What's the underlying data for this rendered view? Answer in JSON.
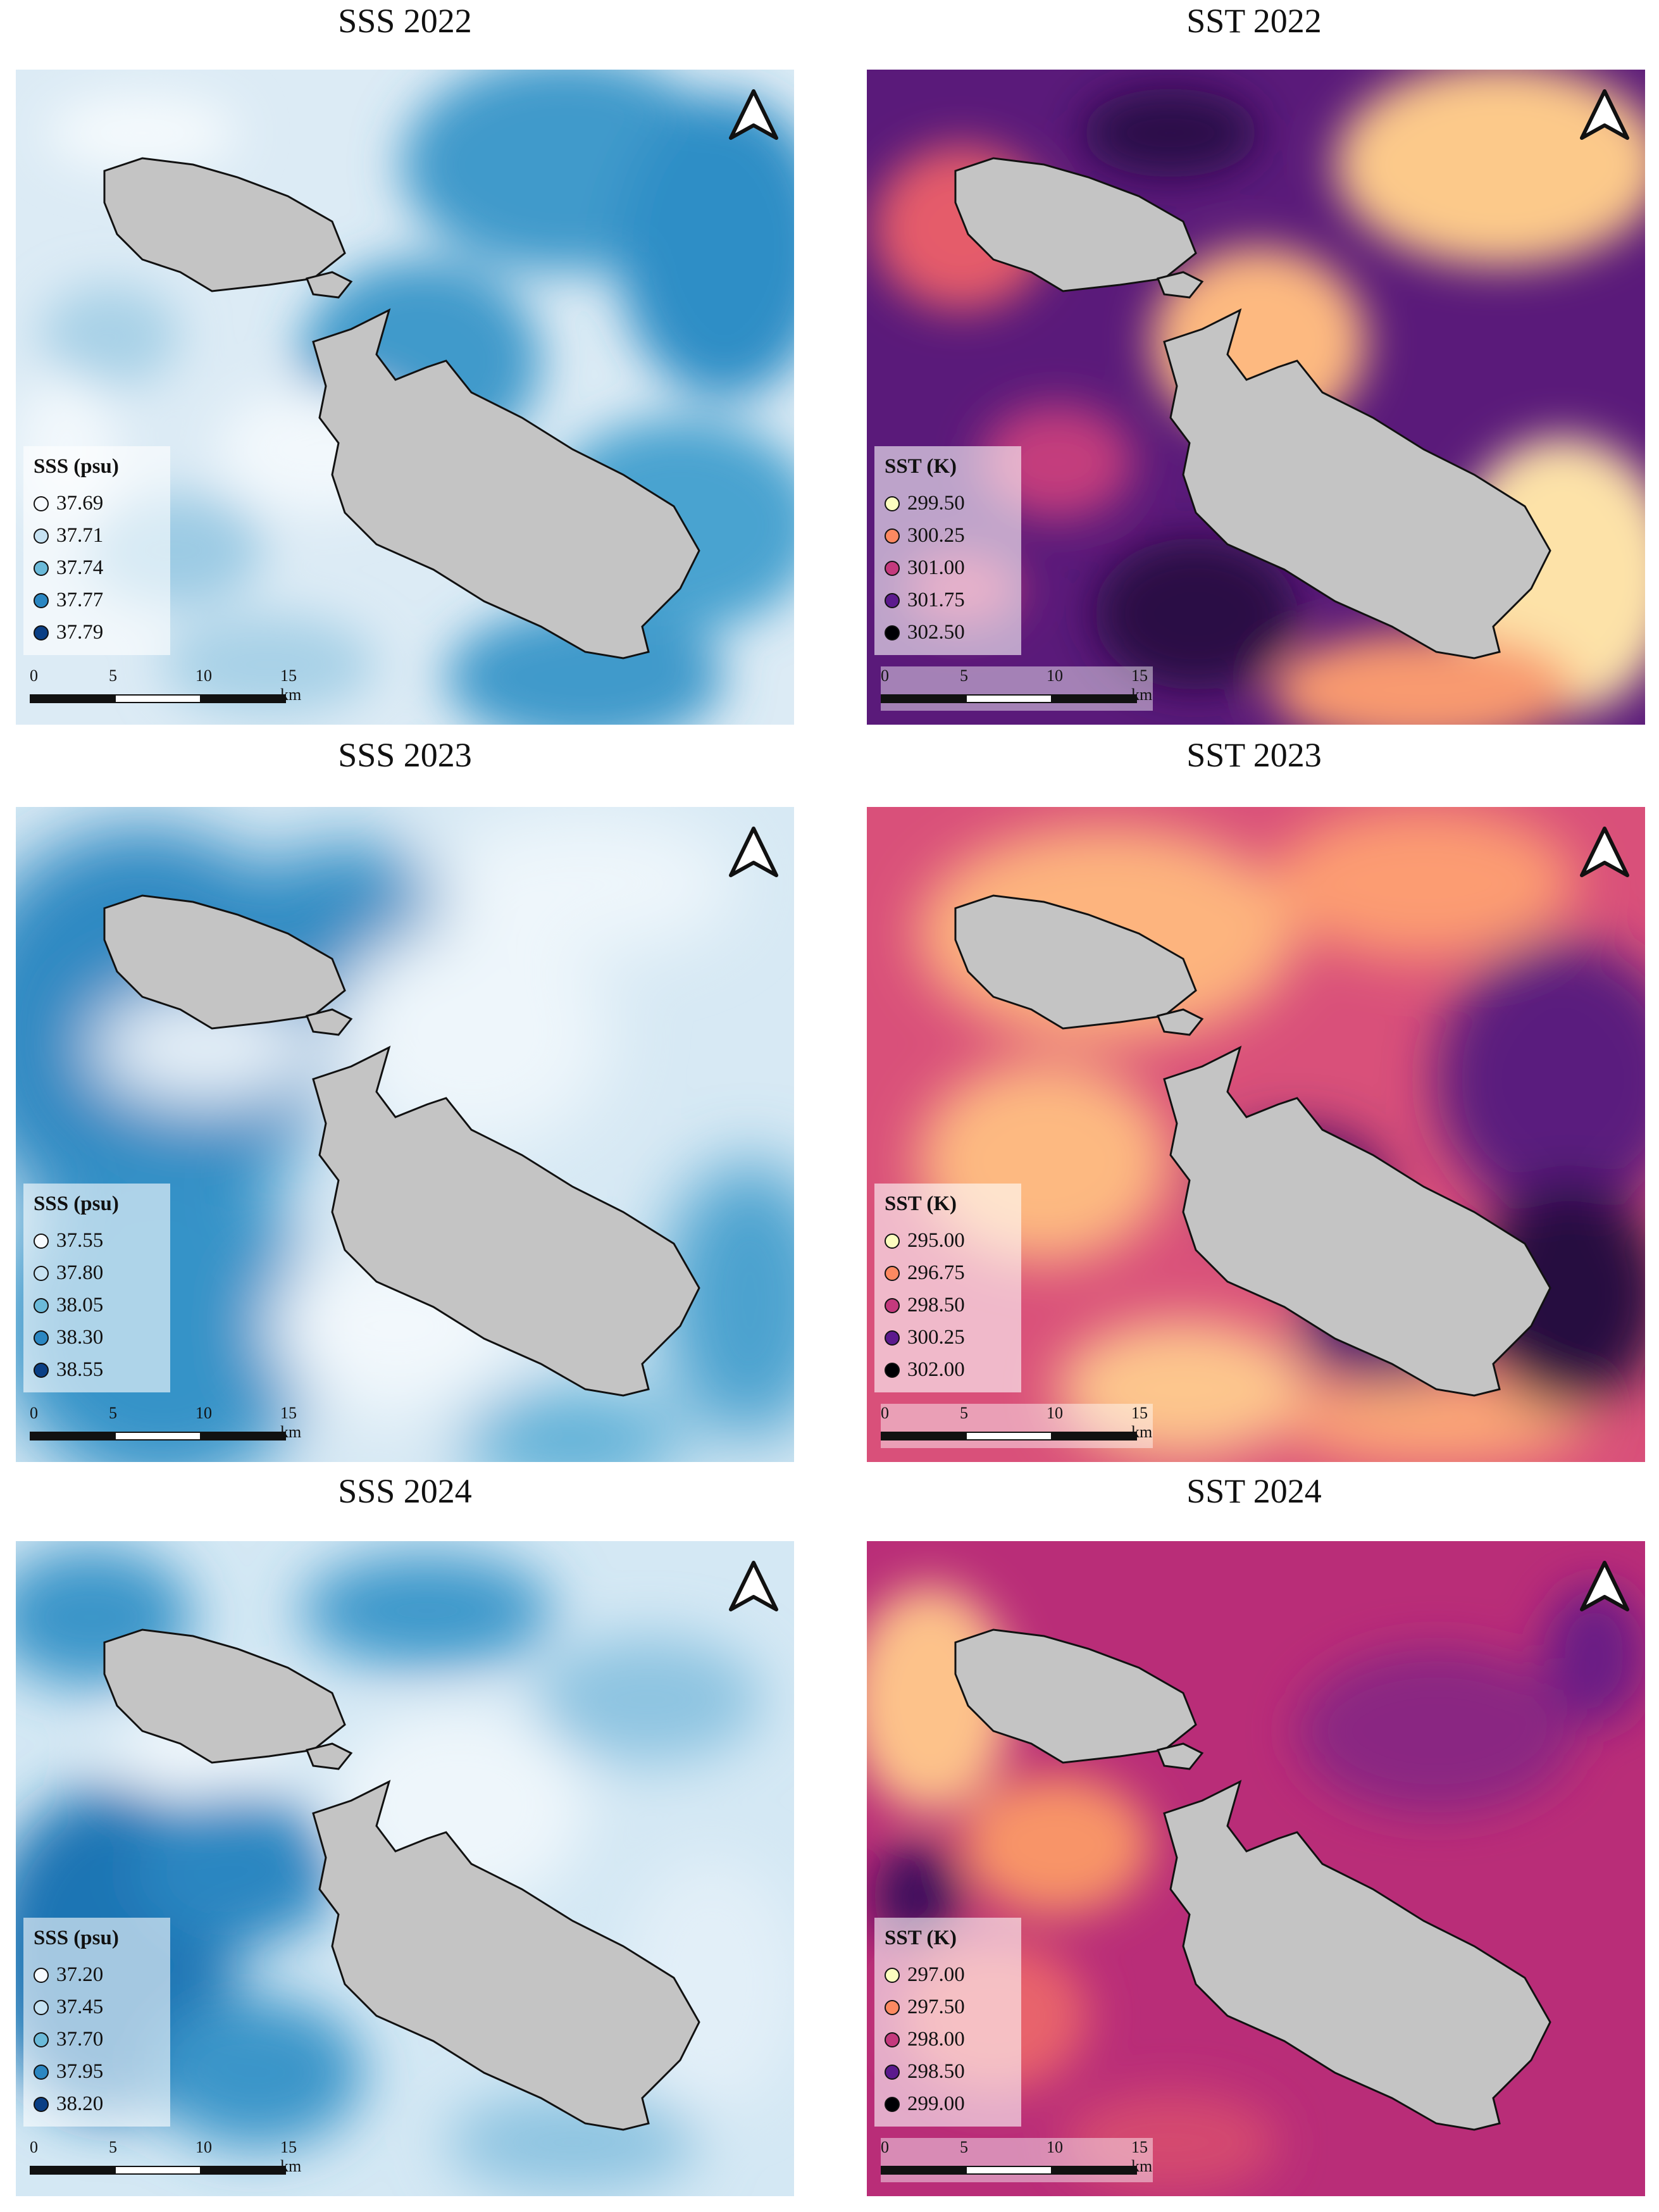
{
  "panels": [
    {
      "title": "SSS 2022",
      "legend": {
        "title": "SSS (psu)",
        "items": [
          {
            "label": "37.69",
            "color": "#f7fbff"
          },
          {
            "label": "37.71",
            "color": "#c6e2f2"
          },
          {
            "label": "37.74",
            "color": "#6bbad9"
          },
          {
            "label": "37.77",
            "color": "#2b87c2"
          },
          {
            "label": "37.79",
            "color": "#0a3f85"
          }
        ]
      },
      "scalebar": {
        "labels": [
          "0",
          "5",
          "10",
          "15 km"
        ]
      }
    },
    {
      "title": "SST 2022",
      "legend": {
        "title": "SST (K)",
        "items": [
          {
            "label": "299.50",
            "color": "#fcfdbf"
          },
          {
            "label": "300.25",
            "color": "#fc8961"
          },
          {
            "label": "301.00",
            "color": "#c4397d"
          },
          {
            "label": "301.75",
            "color": "#5c1a8d"
          },
          {
            "label": "302.50",
            "color": "#000004"
          }
        ]
      },
      "scalebar": {
        "labels": [
          "0",
          "5",
          "10",
          "15 km"
        ]
      }
    },
    {
      "title": "SSS 2023",
      "legend": {
        "title": "SSS (psu)",
        "items": [
          {
            "label": "37.55",
            "color": "#f7fbff"
          },
          {
            "label": "37.80",
            "color": "#c6e2f2"
          },
          {
            "label": "38.05",
            "color": "#6bbad9"
          },
          {
            "label": "38.30",
            "color": "#2b87c2"
          },
          {
            "label": "38.55",
            "color": "#0a3f85"
          }
        ]
      },
      "scalebar": {
        "labels": [
          "0",
          "5",
          "10",
          "15 km"
        ]
      }
    },
    {
      "title": "SST 2023",
      "legend": {
        "title": "SST (K)",
        "items": [
          {
            "label": "295.00",
            "color": "#fcfdbf"
          },
          {
            "label": "296.75",
            "color": "#fc8961"
          },
          {
            "label": "298.50",
            "color": "#c4397d"
          },
          {
            "label": "300.25",
            "color": "#5c1a8d"
          },
          {
            "label": "302.00",
            "color": "#000004"
          }
        ]
      },
      "scalebar": {
        "labels": [
          "0",
          "5",
          "10",
          "15 km"
        ]
      }
    },
    {
      "title": "SSS 2024",
      "legend": {
        "title": "SSS (psu)",
        "items": [
          {
            "label": "37.20",
            "color": "#f7fbff"
          },
          {
            "label": "37.45",
            "color": "#c6e2f2"
          },
          {
            "label": "37.70",
            "color": "#6bbad9"
          },
          {
            "label": "37.95",
            "color": "#2b87c2"
          },
          {
            "label": "38.20",
            "color": "#0a3f85"
          }
        ]
      },
      "scalebar": {
        "labels": [
          "0",
          "5",
          "10",
          "15 km"
        ]
      }
    },
    {
      "title": "SST 2024",
      "legend": {
        "title": "SST (K)",
        "items": [
          {
            "label": "297.00",
            "color": "#fcfdbf"
          },
          {
            "label": "297.50",
            "color": "#fc8961"
          },
          {
            "label": "298.00",
            "color": "#c4397d"
          },
          {
            "label": "298.50",
            "color": "#5c1a8d"
          },
          {
            "label": "299.00",
            "color": "#000004"
          }
        ]
      },
      "scalebar": {
        "labels": [
          "0",
          "5",
          "10",
          "15 km"
        ]
      }
    }
  ]
}
